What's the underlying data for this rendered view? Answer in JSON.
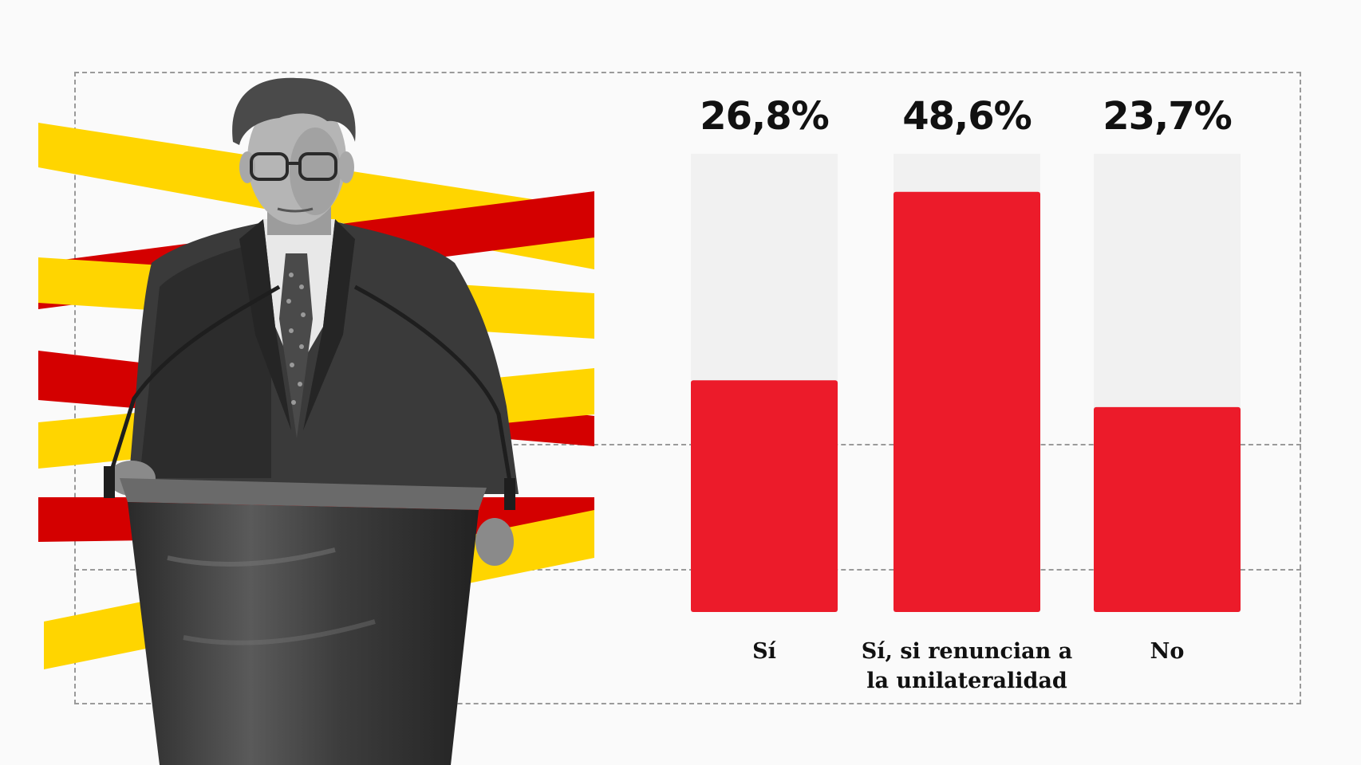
{
  "chart_data": {
    "type": "bar",
    "categories": [
      "Sí",
      "Sí, si renuncian a la unilateralidad",
      "No"
    ],
    "category_lines": [
      [
        "Sí"
      ],
      [
        "Sí, si renuncian a",
        "la unilateralidad"
      ],
      [
        "No"
      ]
    ],
    "values": [
      26.8,
      48.6,
      23.7
    ],
    "value_labels": [
      "26,8%",
      "48,6%",
      "23,7%"
    ],
    "ylim": [
      0,
      53
    ],
    "colors": {
      "bar": "#ec1b2a",
      "track": "#f1f1f1"
    },
    "title": "",
    "xlabel": "",
    "ylabel": ""
  },
  "illustration": {
    "subject": "man-at-podium-photo",
    "stripe_colors": [
      "#ffd500",
      "#d40000"
    ]
  }
}
